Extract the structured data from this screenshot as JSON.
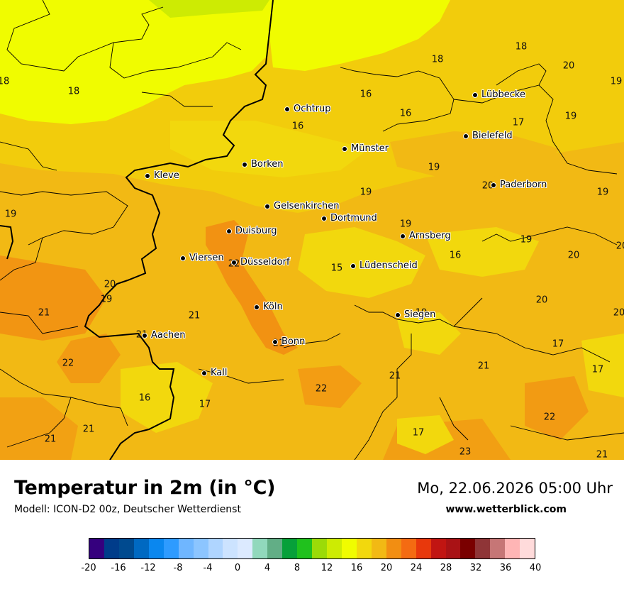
{
  "header": {
    "title": "Temperatur in 2m (in °C)",
    "subtitle": "Modell: ICON-D2 00z, Deutscher Wetterdienst",
    "datetime": "Mo, 22.06.2026 05:00 Uhr",
    "website": "www.wetterblick.com"
  },
  "cities": [
    {
      "name": "Ochtrup"
    },
    {
      "name": "Lübbecke"
    },
    {
      "name": "Bielefeld"
    },
    {
      "name": "Münster"
    },
    {
      "name": "Borken"
    },
    {
      "name": "Kleve"
    },
    {
      "name": "Paderborn"
    },
    {
      "name": "Gelsenkirchen"
    },
    {
      "name": "Dortmund"
    },
    {
      "name": "Duisburg"
    },
    {
      "name": "Arnsberg"
    },
    {
      "name": "Viersen"
    },
    {
      "name": "Düsseldorf"
    },
    {
      "name": "Lüdenscheid"
    },
    {
      "name": "Köln"
    },
    {
      "name": "Siegen"
    },
    {
      "name": "Aachen"
    },
    {
      "name": "Bonn"
    },
    {
      "name": "Kall"
    }
  ],
  "values": [
    "18",
    "18",
    "18",
    "20",
    "19",
    "16",
    "16",
    "18",
    "16",
    "19",
    "17",
    "19",
    "19",
    "20",
    "19",
    "19",
    "19",
    "20",
    "19",
    "21",
    "19",
    "16",
    "20",
    "15",
    "20",
    "21",
    "21",
    "21",
    "20",
    "17",
    "21",
    "17",
    "22",
    "16",
    "17",
    "22",
    "21",
    "21",
    "22",
    "21",
    "17",
    "23",
    "21",
    "20",
    "22",
    "19"
  ],
  "legend": {
    "colors": [
      "#35007e",
      "#003c8a",
      "#004a8f",
      "#0069c2",
      "#0a87ef",
      "#2e9bff",
      "#6fb6ff",
      "#8cc5ff",
      "#afd5ff",
      "#cce3ff",
      "#dceaff",
      "#91d8bc",
      "#62ae86",
      "#07a03a",
      "#20c11d",
      "#9bdb08",
      "#cdeb03",
      "#f0fc00",
      "#f2d80d",
      "#f2b914",
      "#f28e12",
      "#f46b12",
      "#e8380c",
      "#c11512",
      "#a91215",
      "#7a0000",
      "#8f3537",
      "#c67676",
      "#ffb5b5",
      "#ffdbdb"
    ],
    "ticks": [
      "-20",
      "-16",
      "-12",
      "-8",
      "-4",
      "0",
      "4",
      "8",
      "12",
      "16",
      "20",
      "24",
      "28",
      "32",
      "36",
      "40"
    ]
  }
}
